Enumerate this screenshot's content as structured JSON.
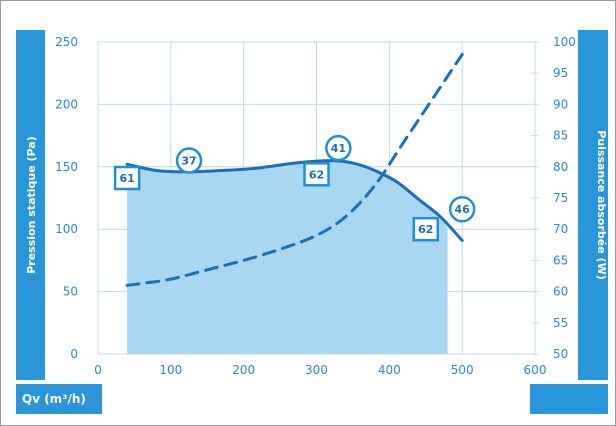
{
  "chart_data": {
    "type": "line",
    "xlabel": "Qv (m³/h)",
    "ylabel_left": "Pression statique (Pa)",
    "ylabel_right": "Puissance absorbée (W)",
    "xlim": [
      0,
      600
    ],
    "ylim_left": [
      0,
      250
    ],
    "ylim_right": [
      50,
      100
    ],
    "x_ticks": [
      "0",
      "100",
      "200",
      "300",
      "400",
      "500",
      "600"
    ],
    "y_ticks_left": [
      "0",
      "50",
      "100",
      "150",
      "200",
      "250"
    ],
    "y_ticks_right": [
      "50",
      "55",
      "60",
      "65",
      "70",
      "75",
      "80",
      "85",
      "90",
      "95",
      "100"
    ],
    "grid": true,
    "series": [
      {
        "axis": "left",
        "style": "solid",
        "x": [
          40,
          80,
          120,
          170,
          220,
          270,
          320,
          350,
          380,
          410,
          440,
          470,
          500
        ],
        "y": [
          152,
          147,
          146,
          147,
          149,
          153,
          155,
          153,
          147,
          138,
          124,
          110,
          91
        ]
      },
      {
        "axis": "right",
        "style": "dashed",
        "x": [
          40,
          60,
          100,
          150,
          200,
          250,
          300,
          340,
          380,
          420,
          460,
          500
        ],
        "y": [
          61,
          61.3,
          62,
          63.5,
          65,
          66.8,
          69,
          72,
          77,
          84,
          91,
          98
        ]
      }
    ],
    "shaded_area": {
      "x": [
        40,
        80,
        120,
        170,
        220,
        270,
        320,
        350,
        380,
        410,
        440,
        470,
        480
      ],
      "y": [
        152,
        147,
        146,
        147,
        149,
        153,
        155,
        153,
        147,
        138,
        124,
        110,
        100
      ]
    },
    "annotations": [
      {
        "text": "37",
        "shape": "circle",
        "x": 125,
        "y": 155
      },
      {
        "text": "41",
        "shape": "circle",
        "x": 330,
        "y": 165
      },
      {
        "text": "46",
        "shape": "circle",
        "x": 500,
        "y": 116
      },
      {
        "text": "61",
        "shape": "square",
        "x": 40,
        "y": 141
      },
      {
        "text": "62",
        "shape": "square",
        "x": 300,
        "y": 144
      },
      {
        "text": "62",
        "shape": "square",
        "x": 450,
        "y": 100
      }
    ],
    "colors": {
      "accent": "#1f8fd6",
      "line": "#1a6fb6",
      "fill": "#a9d7f2",
      "grid": "#bcdcf2",
      "side_bar": "#2b95da"
    }
  }
}
